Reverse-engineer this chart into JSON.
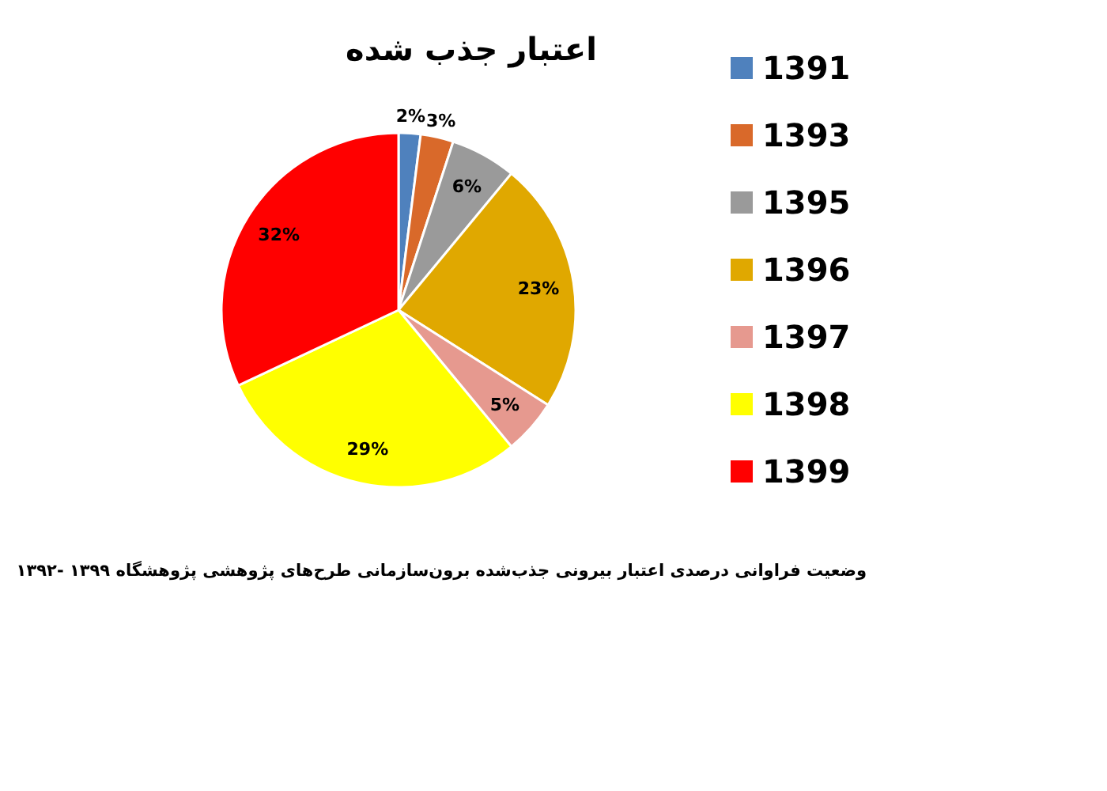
{
  "chart_data": {
    "type": "pie",
    "title": "اعتبار جذب شده",
    "categories": [
      "1391",
      "1393",
      "1395",
      "1396",
      "1397",
      "1398",
      "1399"
    ],
    "values": [
      2,
      3,
      6,
      23,
      5,
      29,
      32
    ],
    "colors": [
      "#4f81bd",
      "#d9692a",
      "#9a9a9a",
      "#e0a800",
      "#e6998f",
      "#ffff00",
      "#ff0000"
    ],
    "value_labels": [
      "2%",
      "3%",
      "6%",
      "23%",
      "5%",
      "29%",
      "32%"
    ],
    "legend": "right",
    "annotations": [
      "وضعیت فراوانی درصدی اعتبار بیرونی جذب‌شده برون‌سازمانی طرح‌های پژوهشی پژوهشگاه ۱۳۹۹ -۱۳۹۲"
    ]
  }
}
